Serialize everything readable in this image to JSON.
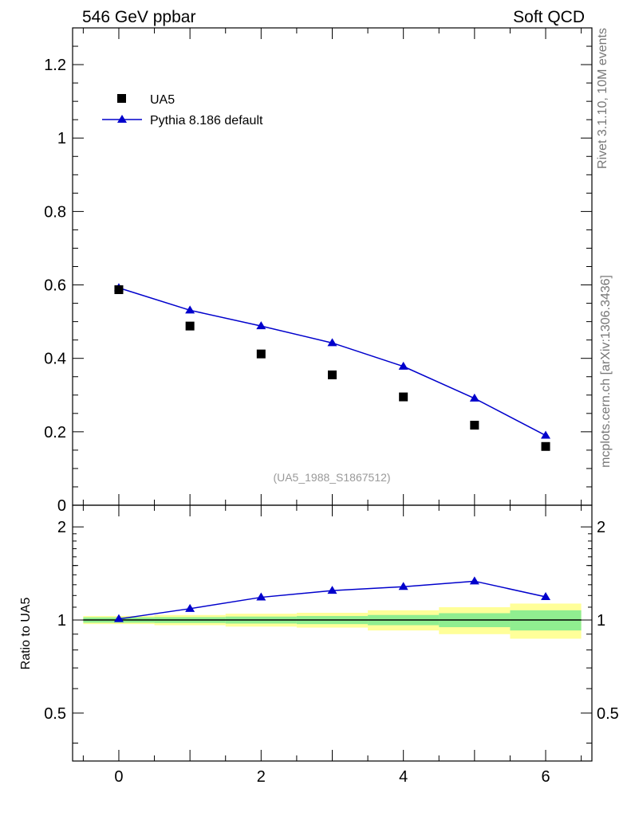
{
  "header": {
    "left_title": "546 GeV ppbar",
    "right_title": "Soft QCD"
  },
  "side_labels": {
    "rivet": "Rivet 3.1.10,  10M events",
    "mcplots": "mcplots.cern.ch [arXiv:1306.3436]"
  },
  "colors": {
    "data_marker": "#000000",
    "mc_line": "#0000cc",
    "band_inner": "#90ee90",
    "band_outer": "#ffff99",
    "axis": "#000000",
    "watermark": "#999999"
  },
  "chart_data": [
    {
      "type": "scatter",
      "panel": "main",
      "watermark": "(UA5_1988_S1867512)",
      "xlim": [
        -0.65,
        6.65
      ],
      "ylim": [
        0,
        1.3
      ],
      "yticks": [
        0,
        0.2,
        0.4,
        0.6,
        0.8,
        1,
        1.2
      ],
      "ytick_labels": [
        "0",
        "0.2",
        "0.4",
        "0.6",
        "0.8",
        "1",
        "1.2"
      ],
      "legend_position": "top-left",
      "series": [
        {
          "name": "UA5",
          "style": "square-markers",
          "x": [
            0,
            1,
            2,
            3,
            4,
            5,
            6
          ],
          "values": [
            0.587,
            0.488,
            0.412,
            0.355,
            0.295,
            0.218,
            0.16
          ]
        },
        {
          "name": "Pythia 8.186 default",
          "style": "line-triangles",
          "x": [
            0,
            1,
            2,
            3,
            4,
            5,
            6
          ],
          "values": [
            0.592,
            0.531,
            0.488,
            0.442,
            0.378,
            0.291,
            0.19
          ]
        }
      ]
    },
    {
      "type": "line",
      "panel": "ratio",
      "ylabel": "Ratio to UA5",
      "xlim": [
        -0.65,
        6.65
      ],
      "ylim": [
        0.35,
        2.35
      ],
      "yscale": "log",
      "yticks": [
        0.5,
        1,
        2
      ],
      "ytick_labels": [
        "0.5",
        "1",
        "2"
      ],
      "xticks": [
        0,
        2,
        4,
        6
      ],
      "xtick_labels": [
        "0",
        "2",
        "4",
        "6"
      ],
      "reference_line": 1,
      "uncertainty_bands": {
        "x_low": [
          -0.5,
          0.5,
          1.5,
          2.5,
          3.5,
          4.5,
          5.5
        ],
        "x_high": [
          0.5,
          1.5,
          2.5,
          3.5,
          4.5,
          5.5,
          6.5
        ],
        "inner_low": [
          0.98,
          0.978,
          0.974,
          0.97,
          0.962,
          0.948,
          0.925
        ],
        "inner_high": [
          1.02,
          1.022,
          1.026,
          1.03,
          1.038,
          1.052,
          1.075
        ],
        "outer_low": [
          0.97,
          0.962,
          0.952,
          0.945,
          0.925,
          0.9,
          0.87
        ],
        "outer_high": [
          1.03,
          1.038,
          1.048,
          1.055,
          1.075,
          1.1,
          1.13
        ]
      },
      "series": [
        {
          "name": "Pythia 8.186 default / UA5",
          "x": [
            0,
            1,
            2,
            3,
            4,
            5,
            6
          ],
          "values": [
            1.008,
            1.088,
            1.184,
            1.245,
            1.281,
            1.335,
            1.188
          ]
        }
      ]
    }
  ]
}
